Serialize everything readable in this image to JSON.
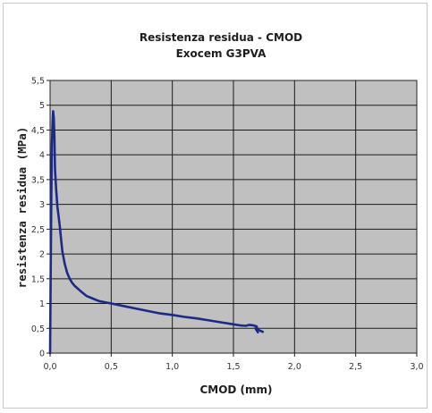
{
  "chart_data": {
    "type": "line",
    "title": "Resistenza residua - CMOD",
    "subtitle": "Exocem G3PVA",
    "xlabel": "CMOD (mm)",
    "ylabel": "resistenza residua (MPa)",
    "xlim": [
      0,
      3
    ],
    "ylim": [
      0,
      5.5
    ],
    "x_ticks": [
      "0,0",
      "0,5",
      "1,0",
      "1,5",
      "2,0",
      "2,5",
      "3,0"
    ],
    "y_ticks": [
      "0",
      "0,5",
      "1",
      "1,5",
      "2",
      "2,5",
      "3",
      "3,5",
      "4",
      "4,5",
      "5",
      "5,5"
    ],
    "grid": true,
    "plot_background": "#c0c0c0",
    "series": [
      {
        "color": "#1c2a86",
        "x": [
          0.0,
          0.005,
          0.01,
          0.015,
          0.02,
          0.025,
          0.03,
          0.035,
          0.04,
          0.05,
          0.06,
          0.07,
          0.08,
          0.09,
          0.1,
          0.12,
          0.14,
          0.16,
          0.18,
          0.2,
          0.25,
          0.3,
          0.35,
          0.4,
          0.5,
          0.6,
          0.7,
          0.8,
          0.9,
          1.0,
          1.1,
          1.2,
          1.3,
          1.4,
          1.5,
          1.55,
          1.6,
          1.63,
          1.66,
          1.69,
          1.7,
          1.68,
          1.72,
          1.74
        ],
        "y": [
          0.0,
          1.7,
          3.2,
          4.2,
          4.6,
          4.88,
          4.75,
          4.4,
          3.7,
          3.3,
          2.95,
          2.75,
          2.55,
          2.3,
          2.05,
          1.8,
          1.62,
          1.5,
          1.42,
          1.36,
          1.25,
          1.15,
          1.1,
          1.05,
          1.0,
          0.95,
          0.9,
          0.85,
          0.8,
          0.77,
          0.73,
          0.7,
          0.66,
          0.62,
          0.58,
          0.56,
          0.55,
          0.57,
          0.56,
          0.54,
          0.42,
          0.5,
          0.45,
          0.43
        ]
      }
    ]
  }
}
